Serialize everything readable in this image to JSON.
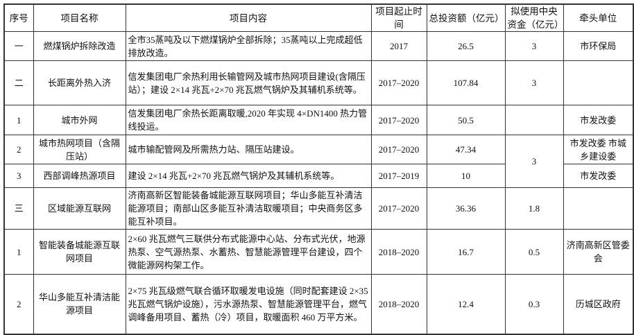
{
  "headers": [
    "序号",
    "项目名称",
    "项目内容",
    "项目起止时间",
    "总投资额（亿元）",
    "拟使用中央资金（亿元）",
    "牵头单位"
  ],
  "rows": [
    {
      "no": "一",
      "name": "燃煤锅炉拆除改造",
      "content": "全市35蒸吨及以下燃煤锅炉全部拆除；35蒸吨以上完成超低排放改造。",
      "period": "2017",
      "investment": "26.5",
      "central_fund": "3",
      "lead": "市环保局"
    },
    {
      "no": "二",
      "name": "长距离外热入济",
      "content": "信发集团电厂余热利用长输管网及城市热网项目建设(含隔压站）；建设 2×14 兆瓦+2×70 兆瓦燃气锅炉及其辅机系统等。",
      "period": "2017–2020",
      "investment": "107.84",
      "central_fund": "3",
      "lead": ""
    },
    {
      "no": "1",
      "name": "城市外网",
      "content": "信发集团电厂余热长距离取暖,2020 年实现 4×DN1400 热力管线投运。",
      "period": "2017–2020",
      "investment": "50.5",
      "central_fund": "",
      "lead": "市发改委"
    },
    {
      "no": "2",
      "name": "城市热网项目（含隔压站）",
      "content": "城市输配管网及所需热力站、隔压站建设。",
      "period": "2017–2020",
      "investment": "47.34",
      "central_fund": "3",
      "lead": "市发改委 市城乡建设委"
    },
    {
      "no": "3",
      "name": "西部调峰热源项目",
      "content": "建设 2×14 兆瓦+2×70 兆瓦燃气锅炉及其辅机系统等。",
      "period": "2017–2019",
      "investment": "10",
      "lead": "市发改委"
    },
    {
      "no": "三",
      "name": "区域能源互联网",
      "content": "济南高新区智能装备城能源互联网项目；华山多能互补清洁能源项目；南部山区多能互补清洁取暖项目；中央商务区多能互补项目。",
      "period": "2017–2020",
      "investment": "36.36",
      "central_fund": "1.8",
      "lead": ""
    },
    {
      "no": "1",
      "name": "智能装备城能源互联网项目",
      "content": "2×60 兆瓦燃气三联供分布式能源中心站、分布式光伏，地源热泵、空气源热泵、水蓄热、智慧能源管理平台建设，四个微能源网构架工作。",
      "period": "2018–2020",
      "investment": "16.7",
      "central_fund": "0.5",
      "lead": "济南高新区管委会"
    },
    {
      "no": "2",
      "name": "华山多能互补清洁能源项目",
      "content": "2×75 兆瓦级燃气联合循环取暖发电设施（同时配套建设 2×35 兆瓦燃气锅炉设施），污水源热泵、智慧能源管理平台，燃气调峰备用项目、蓄热（冷）项目，取暖面积 460 万平方米。",
      "period": "2018–2020",
      "investment": "12.4",
      "central_fund": "0.3",
      "lead": "历城区政府"
    }
  ]
}
